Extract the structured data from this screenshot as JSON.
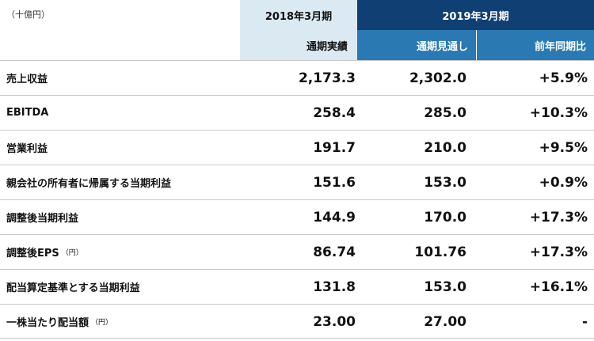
{
  "unit_label": "（十億円）",
  "header": {
    "fy2018": "2018年3月期",
    "fy2019": "2019年3月期",
    "actual": "通期実績",
    "forecast": "通期見通し",
    "yoy": "前年同期比"
  },
  "rows": [
    {
      "label": "売上収益",
      "note": "",
      "actual": "2,173.3",
      "forecast": "2,302.0",
      "yoy": "+5.9%"
    },
    {
      "label": "EBITDA",
      "note": "",
      "actual": "258.4",
      "forecast": "285.0",
      "yoy": "+10.3%"
    },
    {
      "label": "営業利益",
      "note": "",
      "actual": "191.7",
      "forecast": "210.0",
      "yoy": "+9.5%"
    },
    {
      "label": "親会社の所有者に帰属する当期利益",
      "note": "",
      "actual": "151.6",
      "forecast": "153.0",
      "yoy": "+0.9%"
    },
    {
      "label": "調整後当期利益",
      "note": "",
      "actual": "144.9",
      "forecast": "170.0",
      "yoy": "+17.3%"
    },
    {
      "label": "調整後EPS",
      "note": "（円）",
      "actual": "86.74",
      "forecast": "101.76",
      "yoy": "+17.3%"
    },
    {
      "label": "配当算定基準とする当期利益",
      "note": "",
      "actual": "131.8",
      "forecast": "153.0",
      "yoy": "+16.1%"
    },
    {
      "label": "一株当たり配当額",
      "note": "（円）",
      "actual": "23.00",
      "forecast": "27.00",
      "yoy": "-"
    }
  ]
}
